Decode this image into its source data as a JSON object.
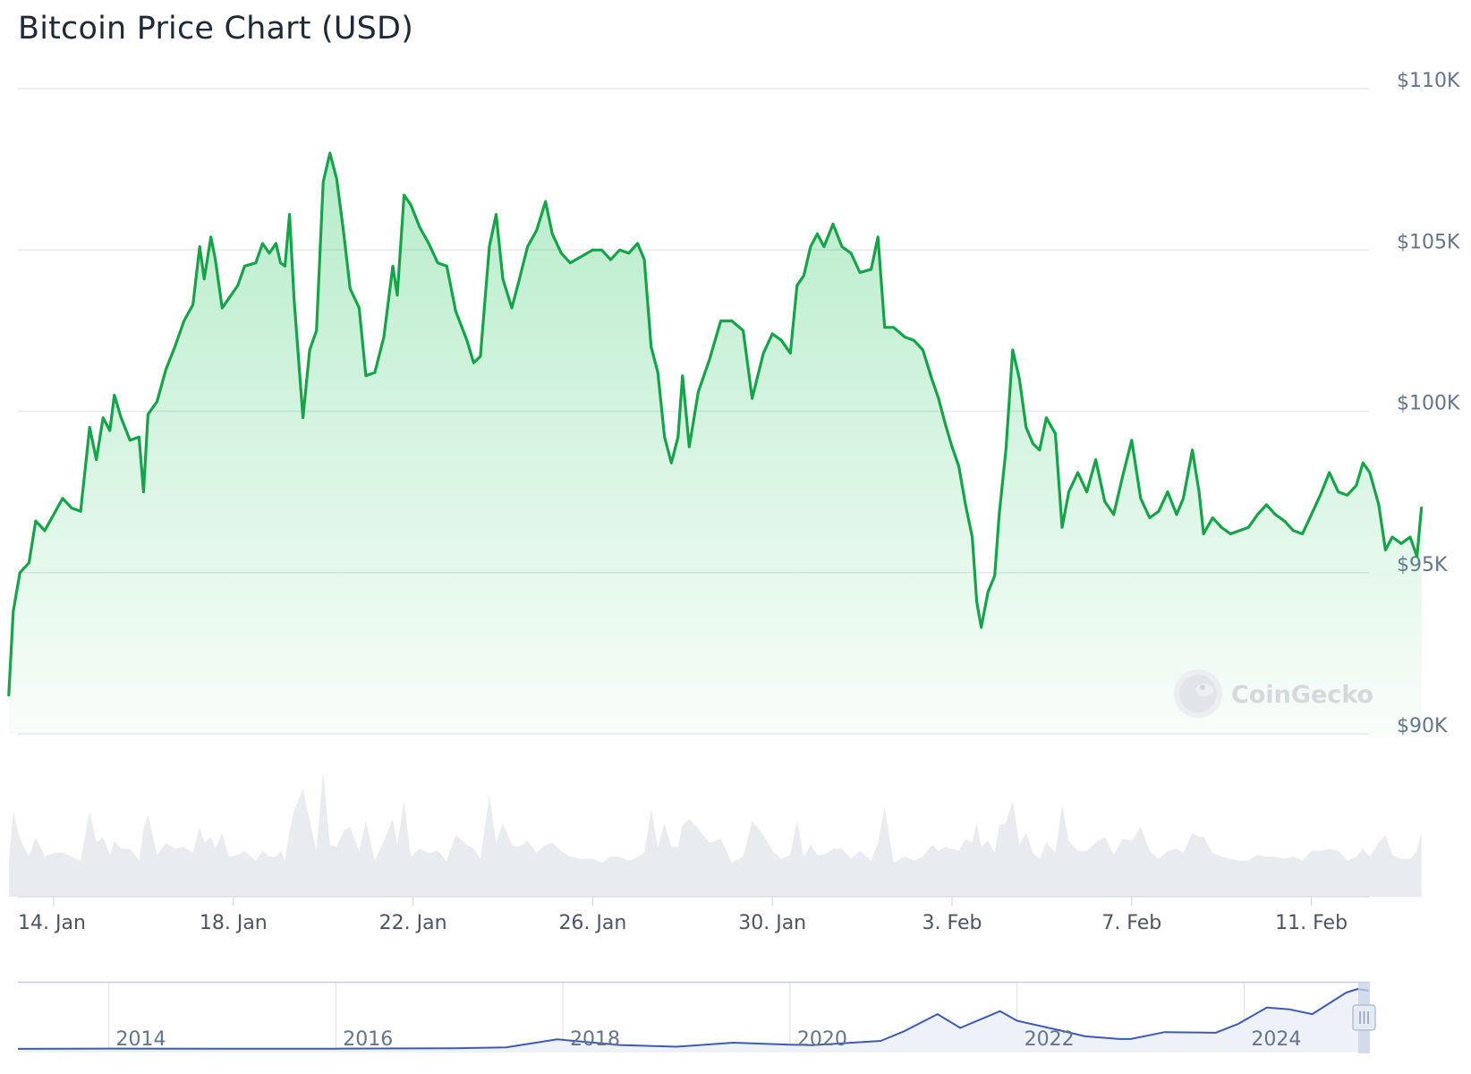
{
  "title": "Bitcoin Price Chart (USD)",
  "watermark": "CoinGecko",
  "colors": {
    "price_line": "#16a34a",
    "price_fill": "#22c55e",
    "volume": "#e8ebef",
    "navigator_line": "#3b5bb5",
    "navigator_fill": "#eef2f8",
    "grid": "#e6e8eb"
  },
  "chart_data": [
    {
      "type": "line",
      "y_axis_labels": [
        "$110K",
        "$105K",
        "$100K",
        "$95K",
        "$90K"
      ],
      "x_axis_labels": [
        "14. Jan",
        "18. Jan",
        "22. Jan",
        "26. Jan",
        "30. Jan",
        "3. Feb",
        "7. Feb",
        "11. Feb"
      ],
      "ylim": [
        90000,
        110000
      ],
      "grid": true,
      "series": [
        {
          "values_usd": [
            [
              13.0,
              91200
            ],
            [
              13.1,
              93800
            ],
            [
              13.25,
              95000
            ],
            [
              13.45,
              95300
            ],
            [
              13.6,
              96600
            ],
            [
              13.8,
              96300
            ],
            [
              14.0,
              96800
            ],
            [
              14.2,
              97300
            ],
            [
              14.4,
              97000
            ],
            [
              14.6,
              96900
            ],
            [
              14.8,
              99500
            ],
            [
              14.95,
              98500
            ],
            [
              15.1,
              99800
            ],
            [
              15.25,
              99400
            ],
            [
              15.35,
              100500
            ],
            [
              15.5,
              99800
            ],
            [
              15.7,
              99100
            ],
            [
              15.9,
              99200
            ],
            [
              16.0,
              97500
            ],
            [
              16.1,
              99900
            ],
            [
              16.3,
              100300
            ],
            [
              16.5,
              101300
            ],
            [
              16.7,
              102000
            ],
            [
              16.9,
              102800
            ],
            [
              17.1,
              103300
            ],
            [
              17.25,
              105100
            ],
            [
              17.35,
              104100
            ],
            [
              17.5,
              105400
            ],
            [
              17.6,
              104700
            ],
            [
              17.75,
              103200
            ],
            [
              17.9,
              103500
            ],
            [
              18.1,
              103900
            ],
            [
              18.25,
              104500
            ],
            [
              18.5,
              104600
            ],
            [
              18.65,
              105200
            ],
            [
              18.8,
              104900
            ],
            [
              18.95,
              105200
            ],
            [
              19.05,
              104600
            ],
            [
              19.15,
              104500
            ],
            [
              19.25,
              106100
            ],
            [
              19.35,
              103500
            ],
            [
              19.55,
              99800
            ],
            [
              19.7,
              101900
            ],
            [
              19.85,
              102500
            ],
            [
              20.0,
              107100
            ],
            [
              20.15,
              108000
            ],
            [
              20.3,
              107200
            ],
            [
              20.45,
              105600
            ],
            [
              20.6,
              103800
            ],
            [
              20.8,
              103200
            ],
            [
              20.95,
              101100
            ],
            [
              21.15,
              101200
            ],
            [
              21.35,
              102300
            ],
            [
              21.55,
              104500
            ],
            [
              21.65,
              103600
            ],
            [
              21.8,
              106700
            ],
            [
              21.95,
              106400
            ],
            [
              22.15,
              105700
            ],
            [
              22.35,
              105200
            ],
            [
              22.55,
              104600
            ],
            [
              22.75,
              104500
            ],
            [
              22.95,
              103100
            ],
            [
              23.2,
              102200
            ],
            [
              23.35,
              101500
            ],
            [
              23.5,
              101700
            ],
            [
              23.7,
              105100
            ],
            [
              23.85,
              106100
            ],
            [
              24.0,
              104100
            ],
            [
              24.2,
              103200
            ],
            [
              24.35,
              104000
            ],
            [
              24.55,
              105100
            ],
            [
              24.75,
              105600
            ],
            [
              24.95,
              106500
            ],
            [
              25.1,
              105500
            ],
            [
              25.3,
              104900
            ],
            [
              25.5,
              104600
            ],
            [
              25.75,
              104800
            ],
            [
              26.0,
              105000
            ],
            [
              26.2,
              105000
            ],
            [
              26.4,
              104700
            ],
            [
              26.6,
              105000
            ],
            [
              26.8,
              104900
            ],
            [
              27.0,
              105200
            ],
            [
              27.15,
              104700
            ],
            [
              27.3,
              102000
            ],
            [
              27.45,
              101200
            ],
            [
              27.6,
              99200
            ],
            [
              27.75,
              98400
            ],
            [
              27.9,
              99200
            ],
            [
              28.0,
              101100
            ],
            [
              28.15,
              98900
            ],
            [
              28.35,
              100600
            ],
            [
              28.6,
              101600
            ],
            [
              28.85,
              102800
            ],
            [
              29.1,
              102800
            ],
            [
              29.35,
              102500
            ],
            [
              29.55,
              100400
            ],
            [
              29.8,
              101800
            ],
            [
              30.0,
              102400
            ],
            [
              30.2,
              102200
            ],
            [
              30.4,
              101800
            ],
            [
              30.55,
              103900
            ],
            [
              30.7,
              104200
            ],
            [
              30.85,
              105100
            ],
            [
              31.0,
              105500
            ],
            [
              31.15,
              105100
            ],
            [
              31.35,
              105800
            ],
            [
              31.55,
              105100
            ],
            [
              31.75,
              104900
            ],
            [
              31.95,
              104300
            ],
            [
              32.2,
              104400
            ],
            [
              32.35,
              105400
            ],
            [
              32.5,
              102600
            ],
            [
              32.7,
              102600
            ],
            [
              32.95,
              102300
            ],
            [
              33.15,
              102200
            ],
            [
              33.35,
              101900
            ],
            [
              33.55,
              101000
            ],
            [
              33.7,
              100400
            ],
            [
              33.85,
              99600
            ],
            [
              34.0,
              98900
            ],
            [
              34.15,
              98300
            ],
            [
              34.3,
              97100
            ],
            [
              34.45,
              96100
            ],
            [
              34.55,
              94100
            ],
            [
              34.65,
              93300
            ],
            [
              34.8,
              94400
            ],
            [
              34.95,
              94900
            ],
            [
              35.05,
              96800
            ],
            [
              35.2,
              98800
            ],
            [
              35.35,
              101900
            ],
            [
              35.5,
              101000
            ],
            [
              35.65,
              99500
            ],
            [
              35.8,
              99000
            ],
            [
              35.95,
              98800
            ],
            [
              36.1,
              99800
            ],
            [
              36.3,
              99300
            ],
            [
              36.45,
              96400
            ],
            [
              36.6,
              97500
            ],
            [
              36.8,
              98100
            ],
            [
              37.0,
              97500
            ],
            [
              37.2,
              98500
            ],
            [
              37.4,
              97200
            ],
            [
              37.6,
              96800
            ],
            [
              37.8,
              98000
            ],
            [
              38.0,
              99100
            ],
            [
              38.2,
              97300
            ],
            [
              38.4,
              96700
            ],
            [
              38.6,
              96900
            ],
            [
              38.8,
              97500
            ],
            [
              39.0,
              96800
            ],
            [
              39.15,
              97300
            ],
            [
              39.35,
              98800
            ],
            [
              39.5,
              97500
            ],
            [
              39.6,
              96200
            ],
            [
              39.8,
              96700
            ],
            [
              40.0,
              96400
            ],
            [
              40.2,
              96200
            ],
            [
              40.4,
              96300
            ],
            [
              40.6,
              96400
            ],
            [
              40.8,
              96800
            ],
            [
              41.0,
              97100
            ],
            [
              41.2,
              96800
            ],
            [
              41.4,
              96600
            ],
            [
              41.6,
              96300
            ],
            [
              41.8,
              96200
            ],
            [
              42.0,
              96800
            ],
            [
              42.2,
              97400
            ],
            [
              42.4,
              98100
            ],
            [
              42.6,
              97500
            ],
            [
              42.8,
              97400
            ],
            [
              43.0,
              97700
            ],
            [
              43.15,
              98400
            ],
            [
              43.3,
              98100
            ],
            [
              43.5,
              97100
            ],
            [
              43.65,
              95700
            ],
            [
              43.8,
              96100
            ],
            [
              44.0,
              95900
            ],
            [
              44.2,
              96100
            ],
            [
              44.35,
              95500
            ],
            [
              44.45,
              97000
            ]
          ]
        }
      ]
    },
    {
      "type": "area",
      "series": [
        {
          "values_usd": [
            [
              2013.2,
              150
            ],
            [
              2014.0,
              600
            ],
            [
              2015.0,
              280
            ],
            [
              2016.0,
              430
            ],
            [
              2017.0,
              1000
            ],
            [
              2017.5,
              2500
            ],
            [
              2017.95,
              16000
            ],
            [
              2018.5,
              6500
            ],
            [
              2019.0,
              3800
            ],
            [
              2019.5,
              10500
            ],
            [
              2020.0,
              7200
            ],
            [
              2020.2,
              6200
            ],
            [
              2020.8,
              13500
            ],
            [
              2021.0,
              29000
            ],
            [
              2021.3,
              58000
            ],
            [
              2021.5,
              35000
            ],
            [
              2021.85,
              63000
            ],
            [
              2022.0,
              47000
            ],
            [
              2022.4,
              30000
            ],
            [
              2022.6,
              21000
            ],
            [
              2022.9,
              16500
            ],
            [
              2023.0,
              16600
            ],
            [
              2023.3,
              28000
            ],
            [
              2023.75,
              27000
            ],
            [
              2023.95,
              42000
            ],
            [
              2024.2,
              69000
            ],
            [
              2024.4,
              66000
            ],
            [
              2024.6,
              58000
            ],
            [
              2024.9,
              94000
            ],
            [
              2025.0,
              100000
            ],
            [
              2025.1,
              97000
            ]
          ]
        }
      ],
      "x_axis_labels": [
        "2014",
        "2016",
        "2018",
        "2020",
        "2022",
        "2024"
      ]
    }
  ]
}
